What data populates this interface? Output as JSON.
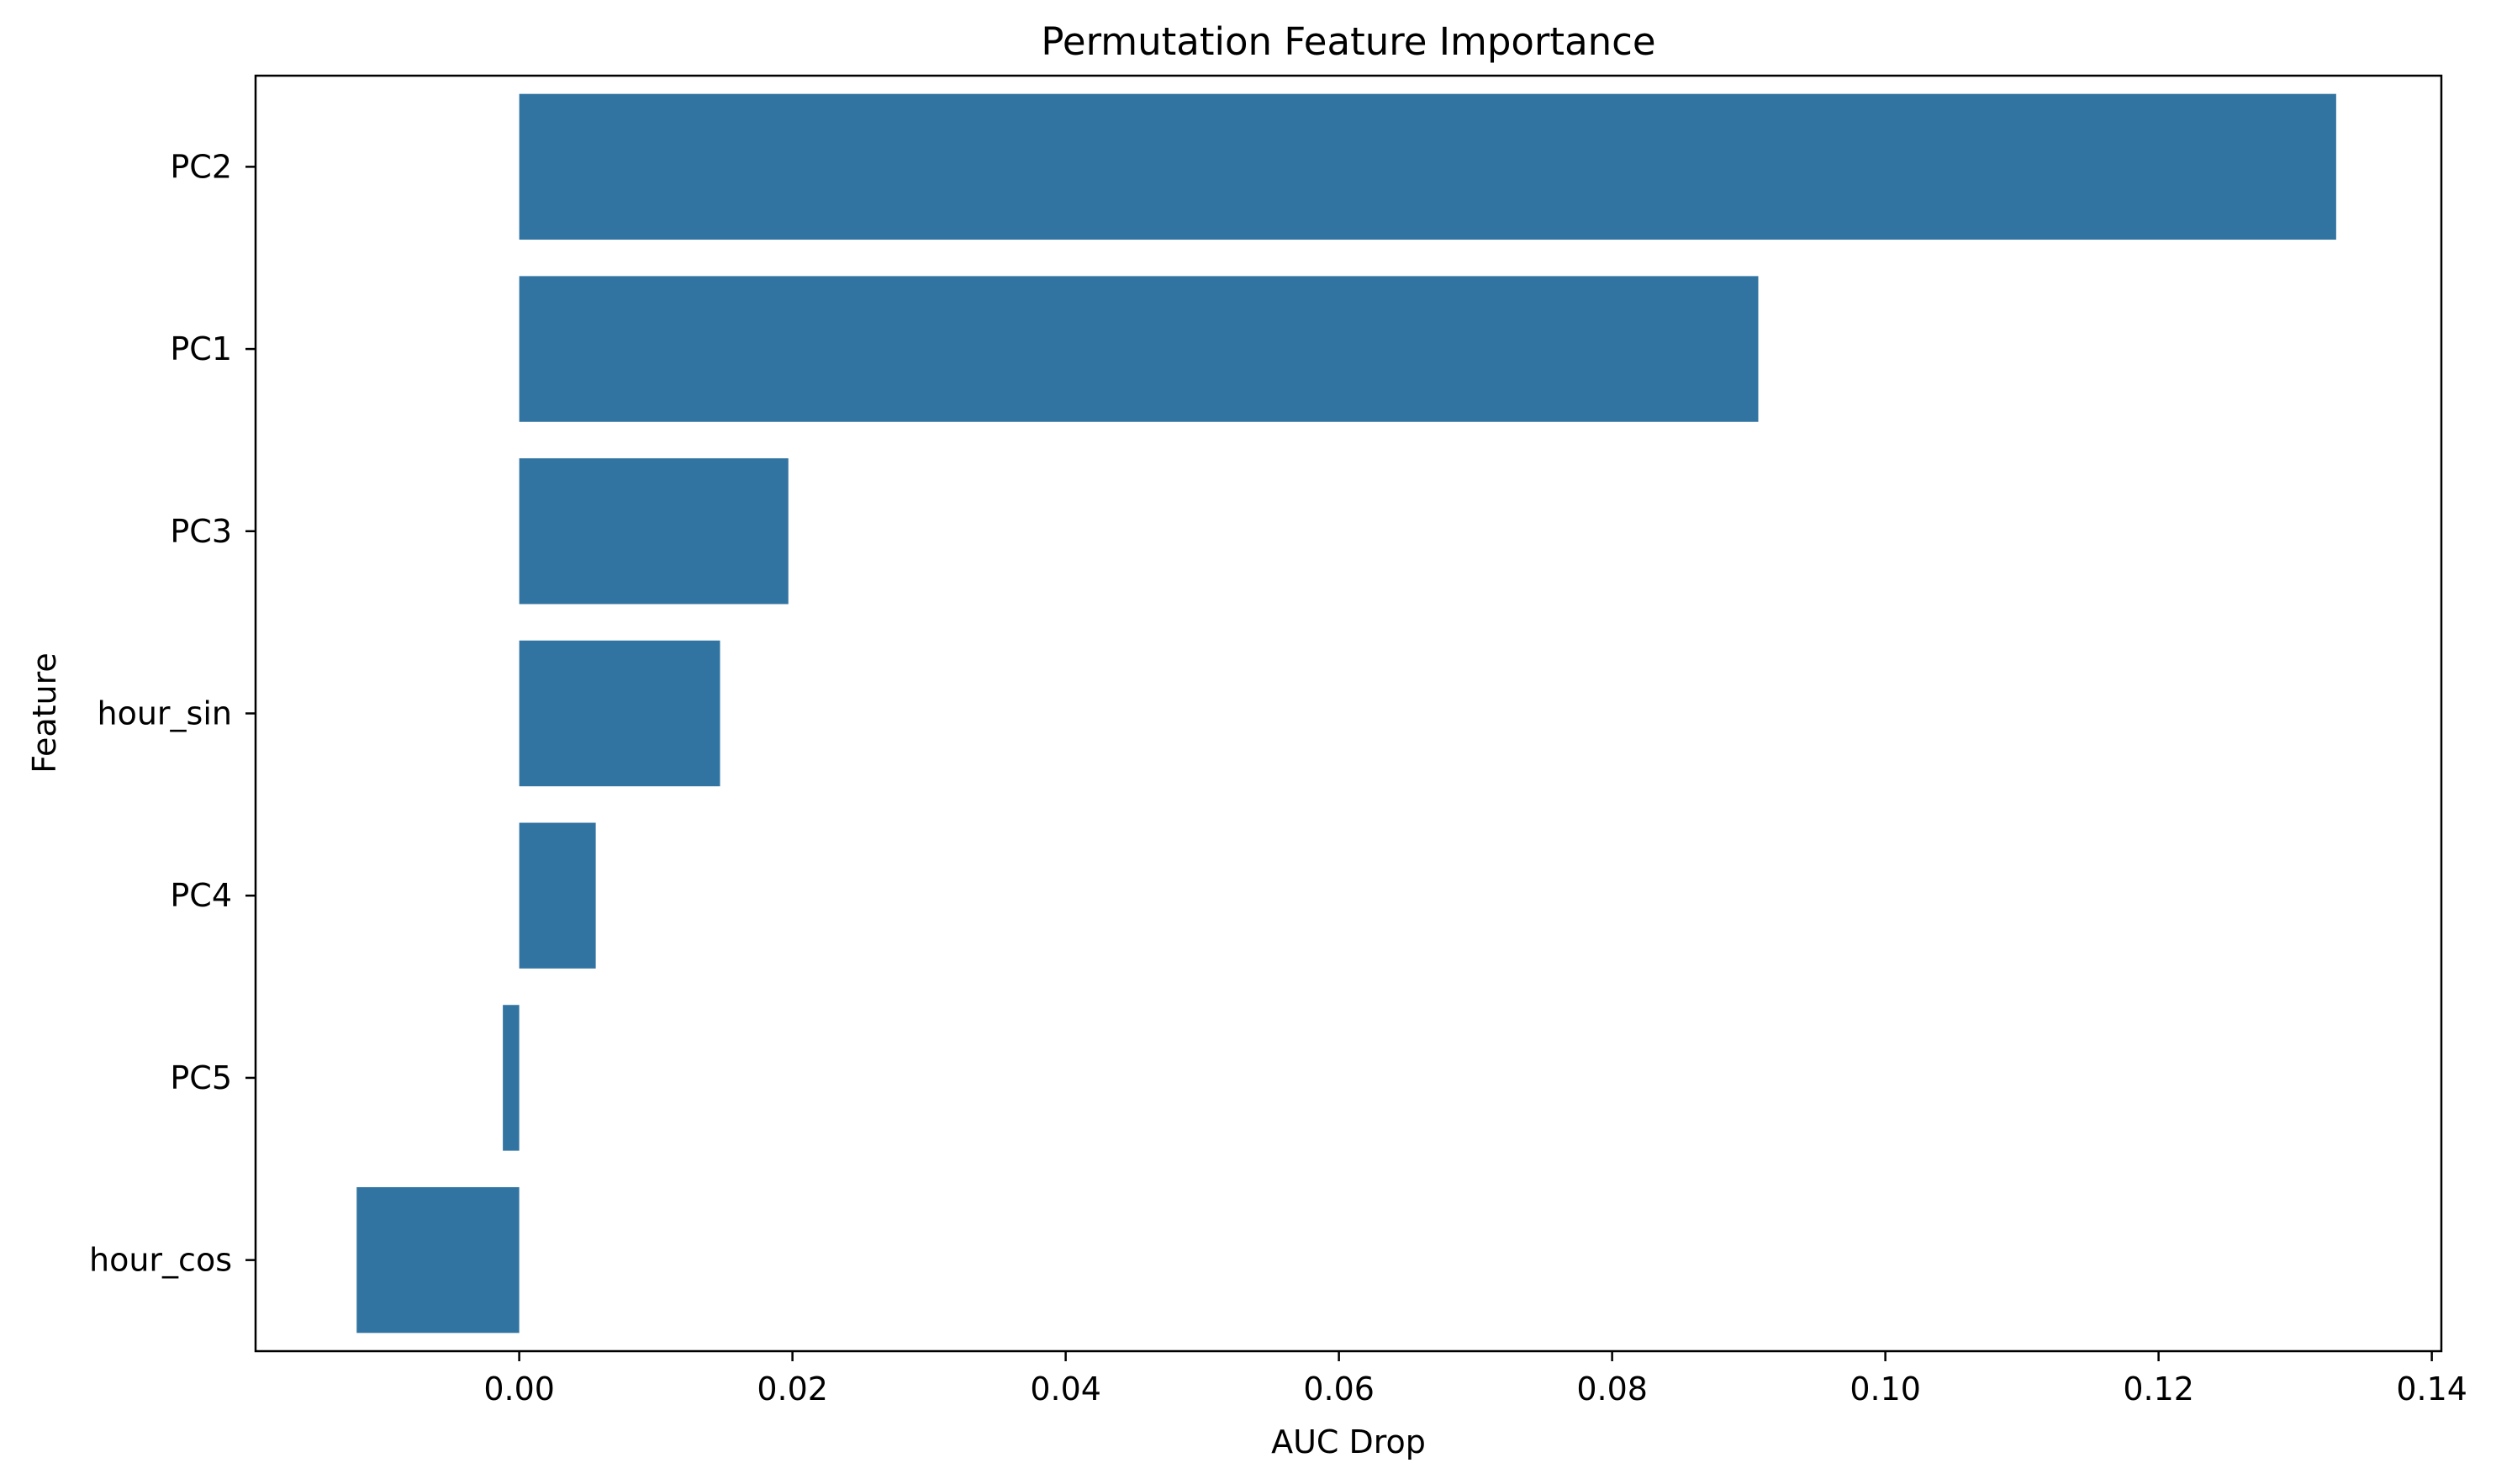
{
  "chart_data": {
    "type": "bar",
    "orientation": "horizontal",
    "title": "Permutation Feature Importance",
    "xlabel": "AUC Drop",
    "ylabel": "Feature",
    "categories": [
      "PC2",
      "PC1",
      "PC3",
      "hour_sin",
      "PC4",
      "PC5",
      "hour_cos"
    ],
    "values": [
      0.133,
      0.0907,
      0.0197,
      0.0147,
      0.0056,
      -0.0012,
      -0.0119
    ],
    "xlim": [
      -0.0193,
      0.1407
    ],
    "xticks": [
      0.0,
      0.02,
      0.04,
      0.06,
      0.08,
      0.1,
      0.12,
      0.14
    ],
    "xtick_labels": [
      "0.00",
      "0.02",
      "0.04",
      "0.06",
      "0.08",
      "0.10",
      "0.12",
      "0.14"
    ],
    "bar_color": "#3274a1",
    "grid": false,
    "legend": "none"
  }
}
